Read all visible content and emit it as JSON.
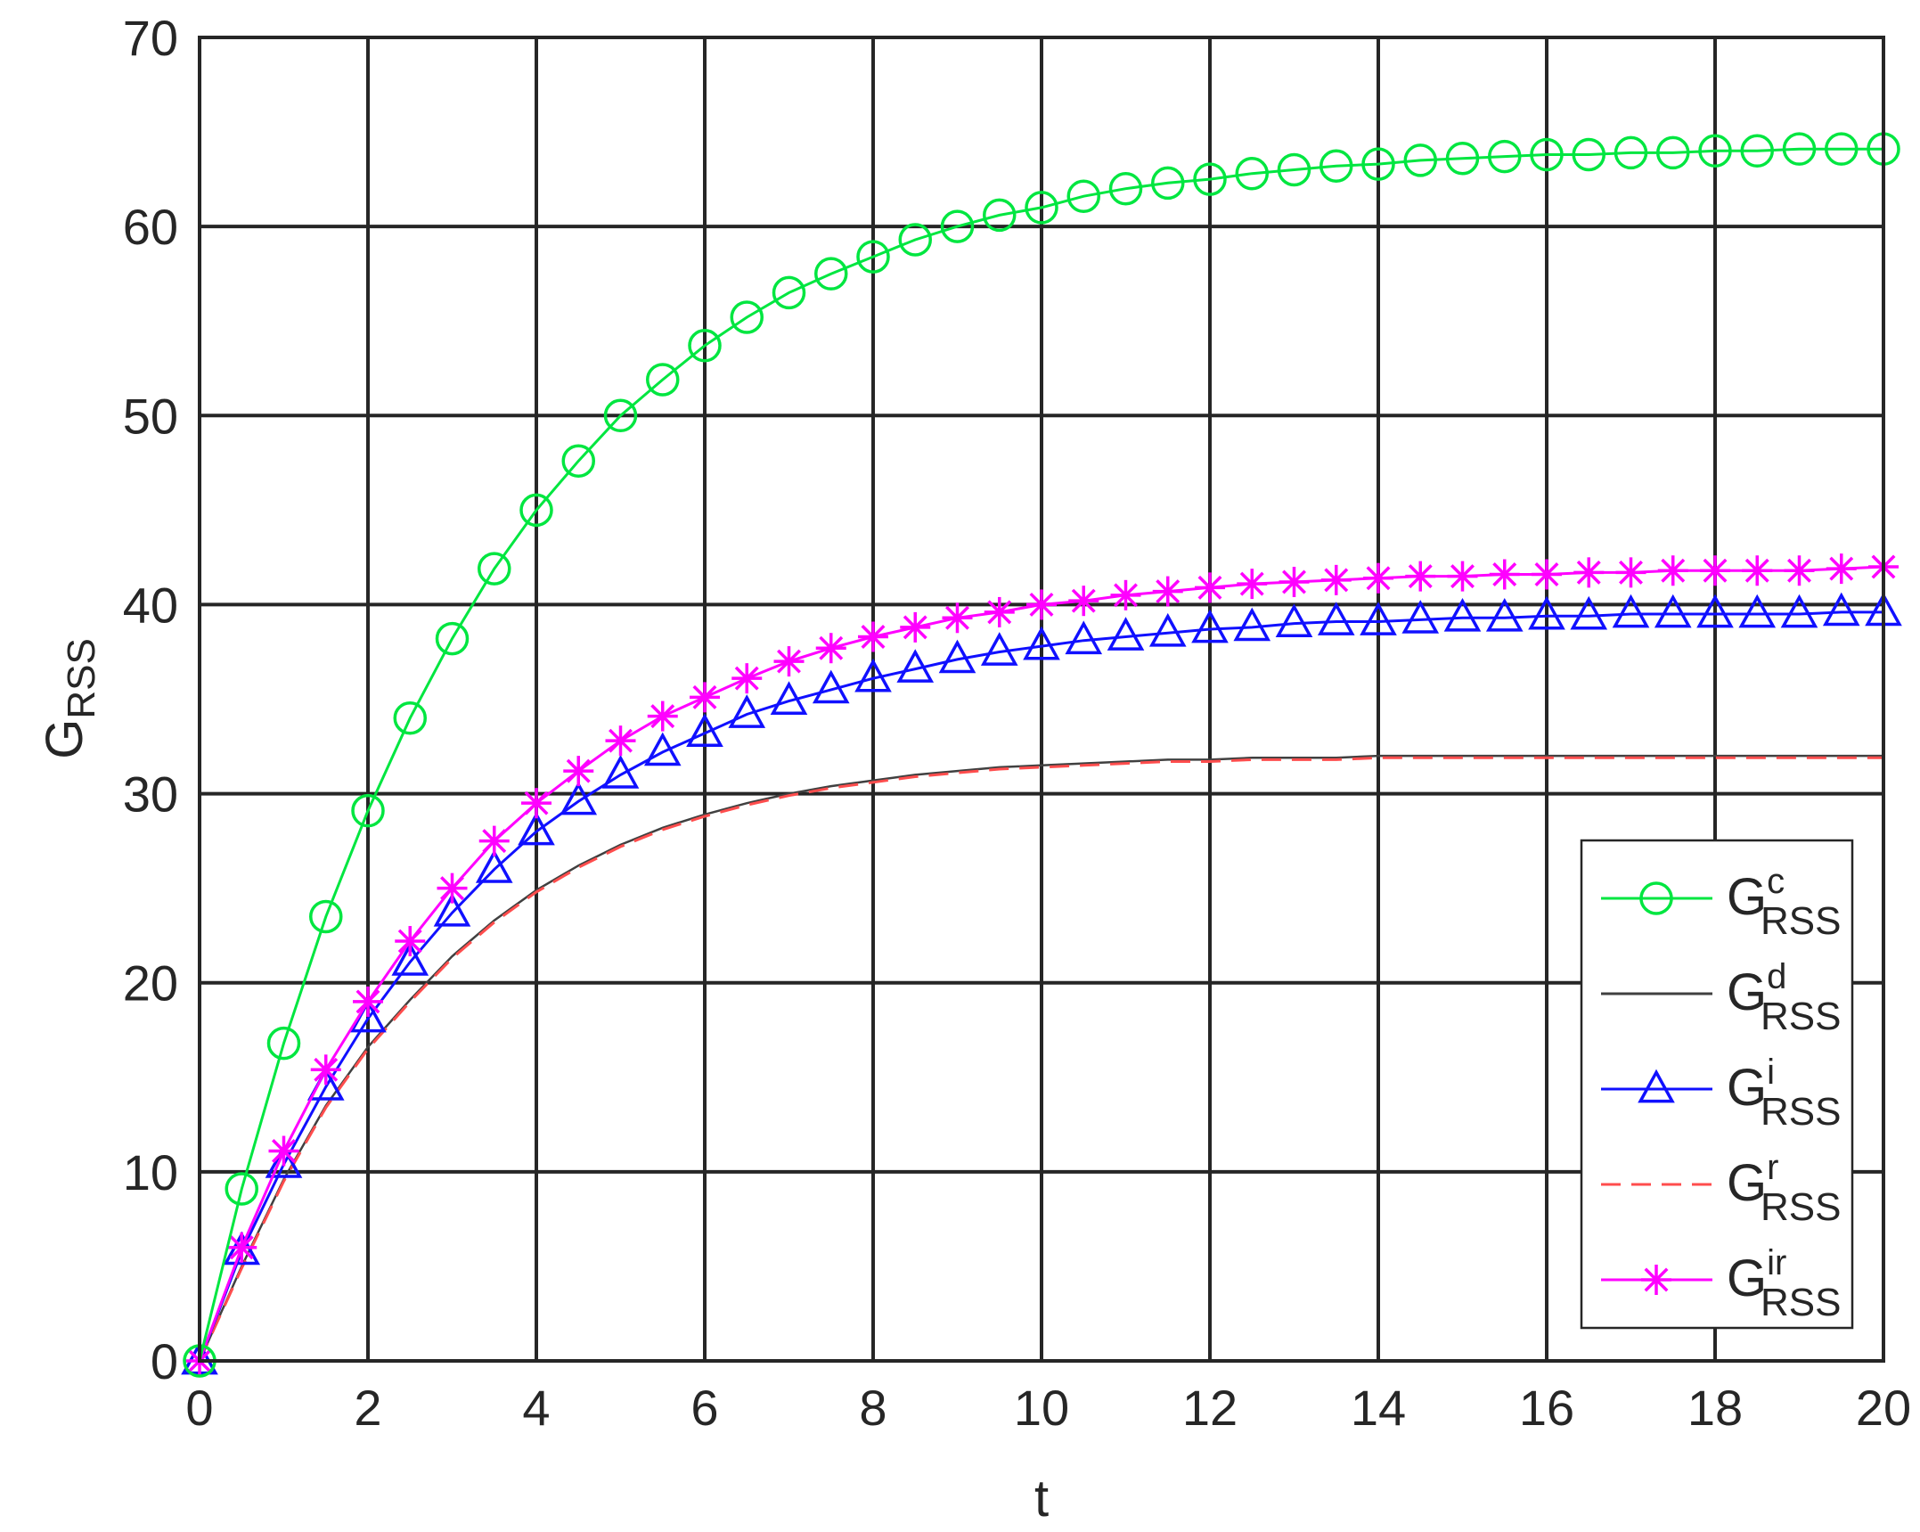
{
  "chart_data": {
    "type": "line",
    "title": "",
    "xlabel": "t",
    "ylabel": {
      "main": "G",
      "sub": "RSS"
    },
    "xlim": [
      0,
      20
    ],
    "ylim": [
      0,
      70
    ],
    "xticks": [
      "0",
      "2",
      "4",
      "6",
      "8",
      "10",
      "12",
      "14",
      "16",
      "18",
      "20"
    ],
    "yticks": [
      "0",
      "10",
      "20",
      "30",
      "40",
      "50",
      "60",
      "70"
    ],
    "grid": true,
    "legend_position": "bottom-right",
    "x": [
      0,
      0.5,
      1,
      1.5,
      2,
      2.5,
      3,
      3.5,
      4,
      4.5,
      5,
      5.5,
      6,
      6.5,
      7,
      7.5,
      8,
      8.5,
      9,
      9.5,
      10,
      10.5,
      11,
      11.5,
      12,
      12.5,
      13,
      13.5,
      14,
      14.5,
      15,
      15.5,
      16,
      16.5,
      17,
      17.5,
      18,
      18.5,
      19,
      19.5,
      20
    ],
    "series": [
      {
        "name": "G",
        "name_sub": "RSS",
        "name_sup": "c",
        "color": "#00e640",
        "marker": "circle",
        "dashed": false,
        "values": [
          0,
          9.1,
          16.8,
          23.5,
          29.1,
          34.0,
          38.2,
          41.9,
          45.0,
          47.6,
          50.0,
          51.9,
          53.7,
          55.2,
          56.5,
          57.5,
          58.4,
          59.3,
          60.0,
          60.6,
          61.0,
          61.6,
          62.0,
          62.3,
          62.5,
          62.8,
          63.0,
          63.2,
          63.3,
          63.5,
          63.6,
          63.7,
          63.8,
          63.8,
          63.9,
          63.9,
          64.0,
          64.0,
          64.1,
          64.1,
          64.1
        ]
      },
      {
        "name": "G",
        "name_sub": "RSS",
        "name_sup": "d",
        "color": "#404040",
        "marker": "none",
        "dashed": false,
        "values": [
          0,
          5.0,
          9.6,
          13.5,
          16.6,
          19.1,
          21.4,
          23.3,
          24.9,
          26.2,
          27.3,
          28.2,
          28.9,
          29.5,
          30.0,
          30.4,
          30.7,
          31.0,
          31.2,
          31.4,
          31.5,
          31.6,
          31.7,
          31.8,
          31.8,
          31.9,
          31.9,
          31.9,
          32.0,
          32.0,
          32.0,
          32.0,
          32.0,
          32.0,
          32.0,
          32.0,
          32.0,
          32.0,
          32.0,
          32.0,
          32.0
        ]
      },
      {
        "name": "G",
        "name_sub": "RSS",
        "name_sup": "i",
        "color": "#1010ff",
        "marker": "triangle",
        "dashed": false,
        "values": [
          0,
          5.8,
          10.4,
          14.5,
          18.1,
          21.1,
          23.7,
          26.0,
          28.0,
          29.6,
          31.0,
          32.2,
          33.2,
          34.2,
          34.9,
          35.5,
          36.1,
          36.6,
          37.1,
          37.5,
          37.8,
          38.1,
          38.3,
          38.5,
          38.7,
          38.8,
          39.0,
          39.1,
          39.1,
          39.2,
          39.3,
          39.3,
          39.4,
          39.4,
          39.5,
          39.5,
          39.5,
          39.5,
          39.5,
          39.6,
          39.6
        ]
      },
      {
        "name": "G",
        "name_sub": "RSS",
        "name_sup": "r",
        "color": "#ff4d4d",
        "marker": "none",
        "dashed": true,
        "values": [
          0,
          4.9,
          9.5,
          13.4,
          16.5,
          19.0,
          21.3,
          23.2,
          24.8,
          26.1,
          27.2,
          28.1,
          28.8,
          29.4,
          29.9,
          30.3,
          30.6,
          30.9,
          31.1,
          31.3,
          31.4,
          31.5,
          31.6,
          31.7,
          31.7,
          31.8,
          31.8,
          31.8,
          31.9,
          31.9,
          31.9,
          31.9,
          31.9,
          31.9,
          31.9,
          31.9,
          31.9,
          31.9,
          31.9,
          31.9,
          31.9
        ]
      },
      {
        "name": "G",
        "name_sub": "RSS",
        "name_sup": "ir",
        "color": "#ff00ff",
        "marker": "asterisk",
        "dashed": false,
        "values": [
          0,
          6.0,
          11.1,
          15.4,
          19.0,
          22.2,
          25.0,
          27.5,
          29.5,
          31.2,
          32.8,
          34.1,
          35.1,
          36.1,
          37.0,
          37.7,
          38.3,
          38.8,
          39.3,
          39.6,
          40.0,
          40.2,
          40.5,
          40.7,
          40.9,
          41.1,
          41.2,
          41.3,
          41.4,
          41.5,
          41.5,
          41.6,
          41.6,
          41.7,
          41.7,
          41.8,
          41.8,
          41.8,
          41.8,
          41.9,
          42.0
        ]
      }
    ]
  }
}
